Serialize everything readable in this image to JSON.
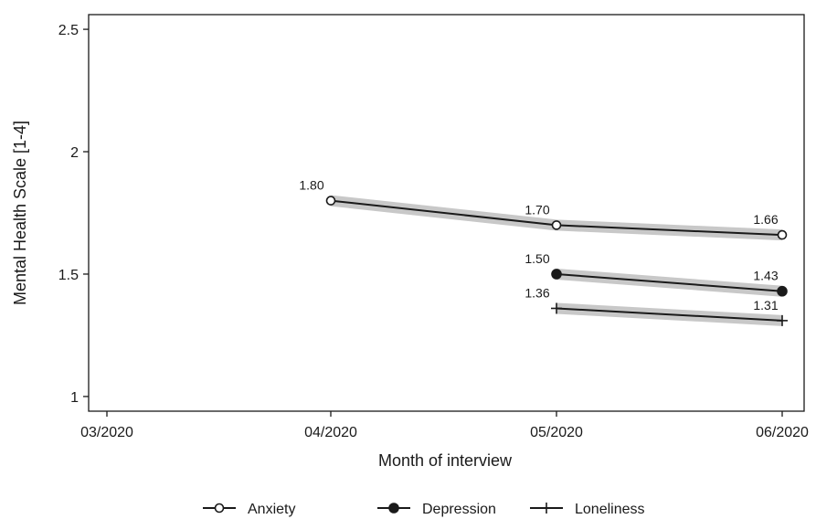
{
  "chart_data": {
    "type": "line",
    "title": "",
    "xlabel": "Month of interview",
    "ylabel": "Mental Health Scale [1-4]",
    "categories": [
      "03/2020",
      "04/2020",
      "05/2020",
      "06/2020"
    ],
    "ylim": [
      0.94,
      2.56
    ],
    "yticks": [
      1,
      1.5,
      2,
      2.5
    ],
    "ytick_labels": [
      "1",
      "1.5",
      "2",
      "2.5"
    ],
    "grid": false,
    "legend_position": "bottom",
    "series": [
      {
        "name": "Anxiety",
        "marker": "hollow-circle",
        "x": [
          "04/2020",
          "05/2020",
          "06/2020"
        ],
        "values": [
          1.8,
          1.7,
          1.66
        ],
        "labels": [
          "1.80",
          "1.70",
          "1.66"
        ],
        "ci_band": true
      },
      {
        "name": "Depression",
        "marker": "filled-circle",
        "x": [
          "05/2020",
          "06/2020"
        ],
        "values": [
          1.5,
          1.43
        ],
        "labels": [
          "1.50",
          "1.43"
        ],
        "ci_band": true
      },
      {
        "name": "Loneliness",
        "marker": "plus",
        "x": [
          "05/2020",
          "06/2020"
        ],
        "values": [
          1.36,
          1.31
        ],
        "labels": [
          "1.36",
          "1.31"
        ],
        "ci_band": true
      }
    ],
    "colors": {
      "line": "#1a1a1a",
      "band": "#c8c8c8",
      "frame": "#1a1a1a"
    }
  }
}
